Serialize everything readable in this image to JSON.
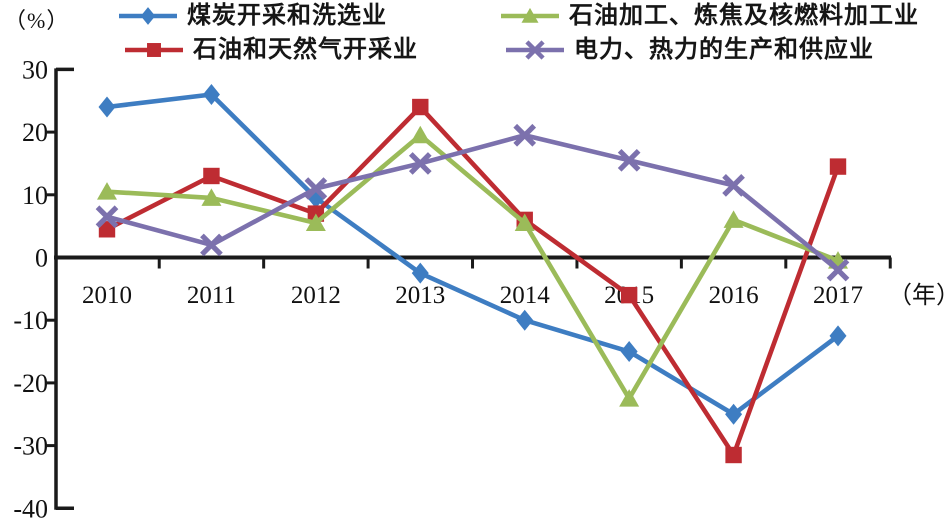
{
  "labels": {
    "y_unit": "（%）",
    "x_unit": "（年）"
  },
  "chart_data": {
    "type": "line",
    "title": "",
    "categories": [
      "2010",
      "2011",
      "2012",
      "2013",
      "2014",
      "2015",
      "2016",
      "2017"
    ],
    "series": [
      {
        "name": "煤炭开采和洗选业",
        "marker": "diamond",
        "color": "#3E7DC2",
        "values": [
          24,
          26,
          9.5,
          -2.5,
          -10,
          -15,
          -25,
          -12.5
        ]
      },
      {
        "name": "石油和天然气开采业",
        "marker": "square",
        "color": "#BE2C32",
        "values": [
          4.5,
          13,
          7,
          24,
          6,
          -6,
          -31.5,
          14.5
        ]
      },
      {
        "name": "石油加工、炼焦及核燃料加工业",
        "marker": "triangle",
        "color": "#9BBB59",
        "values": [
          10.5,
          9.5,
          5.5,
          19.5,
          5.5,
          -22.5,
          6,
          -0.5
        ]
      },
      {
        "name": "电力、热力的生产和供应业",
        "marker": "x",
        "color": "#7C71AD",
        "values": [
          6.5,
          2,
          11,
          15,
          19.5,
          15.5,
          11.5,
          -2
        ]
      }
    ],
    "xlabel": "（年）",
    "ylabel": "（%）",
    "ylim": [
      -40,
      30
    ],
    "yticks": [
      30,
      20,
      10,
      0,
      -10,
      -20,
      -30,
      -40
    ],
    "grid": false,
    "legend_position": "top",
    "axis_color": "#1a1a1a"
  }
}
